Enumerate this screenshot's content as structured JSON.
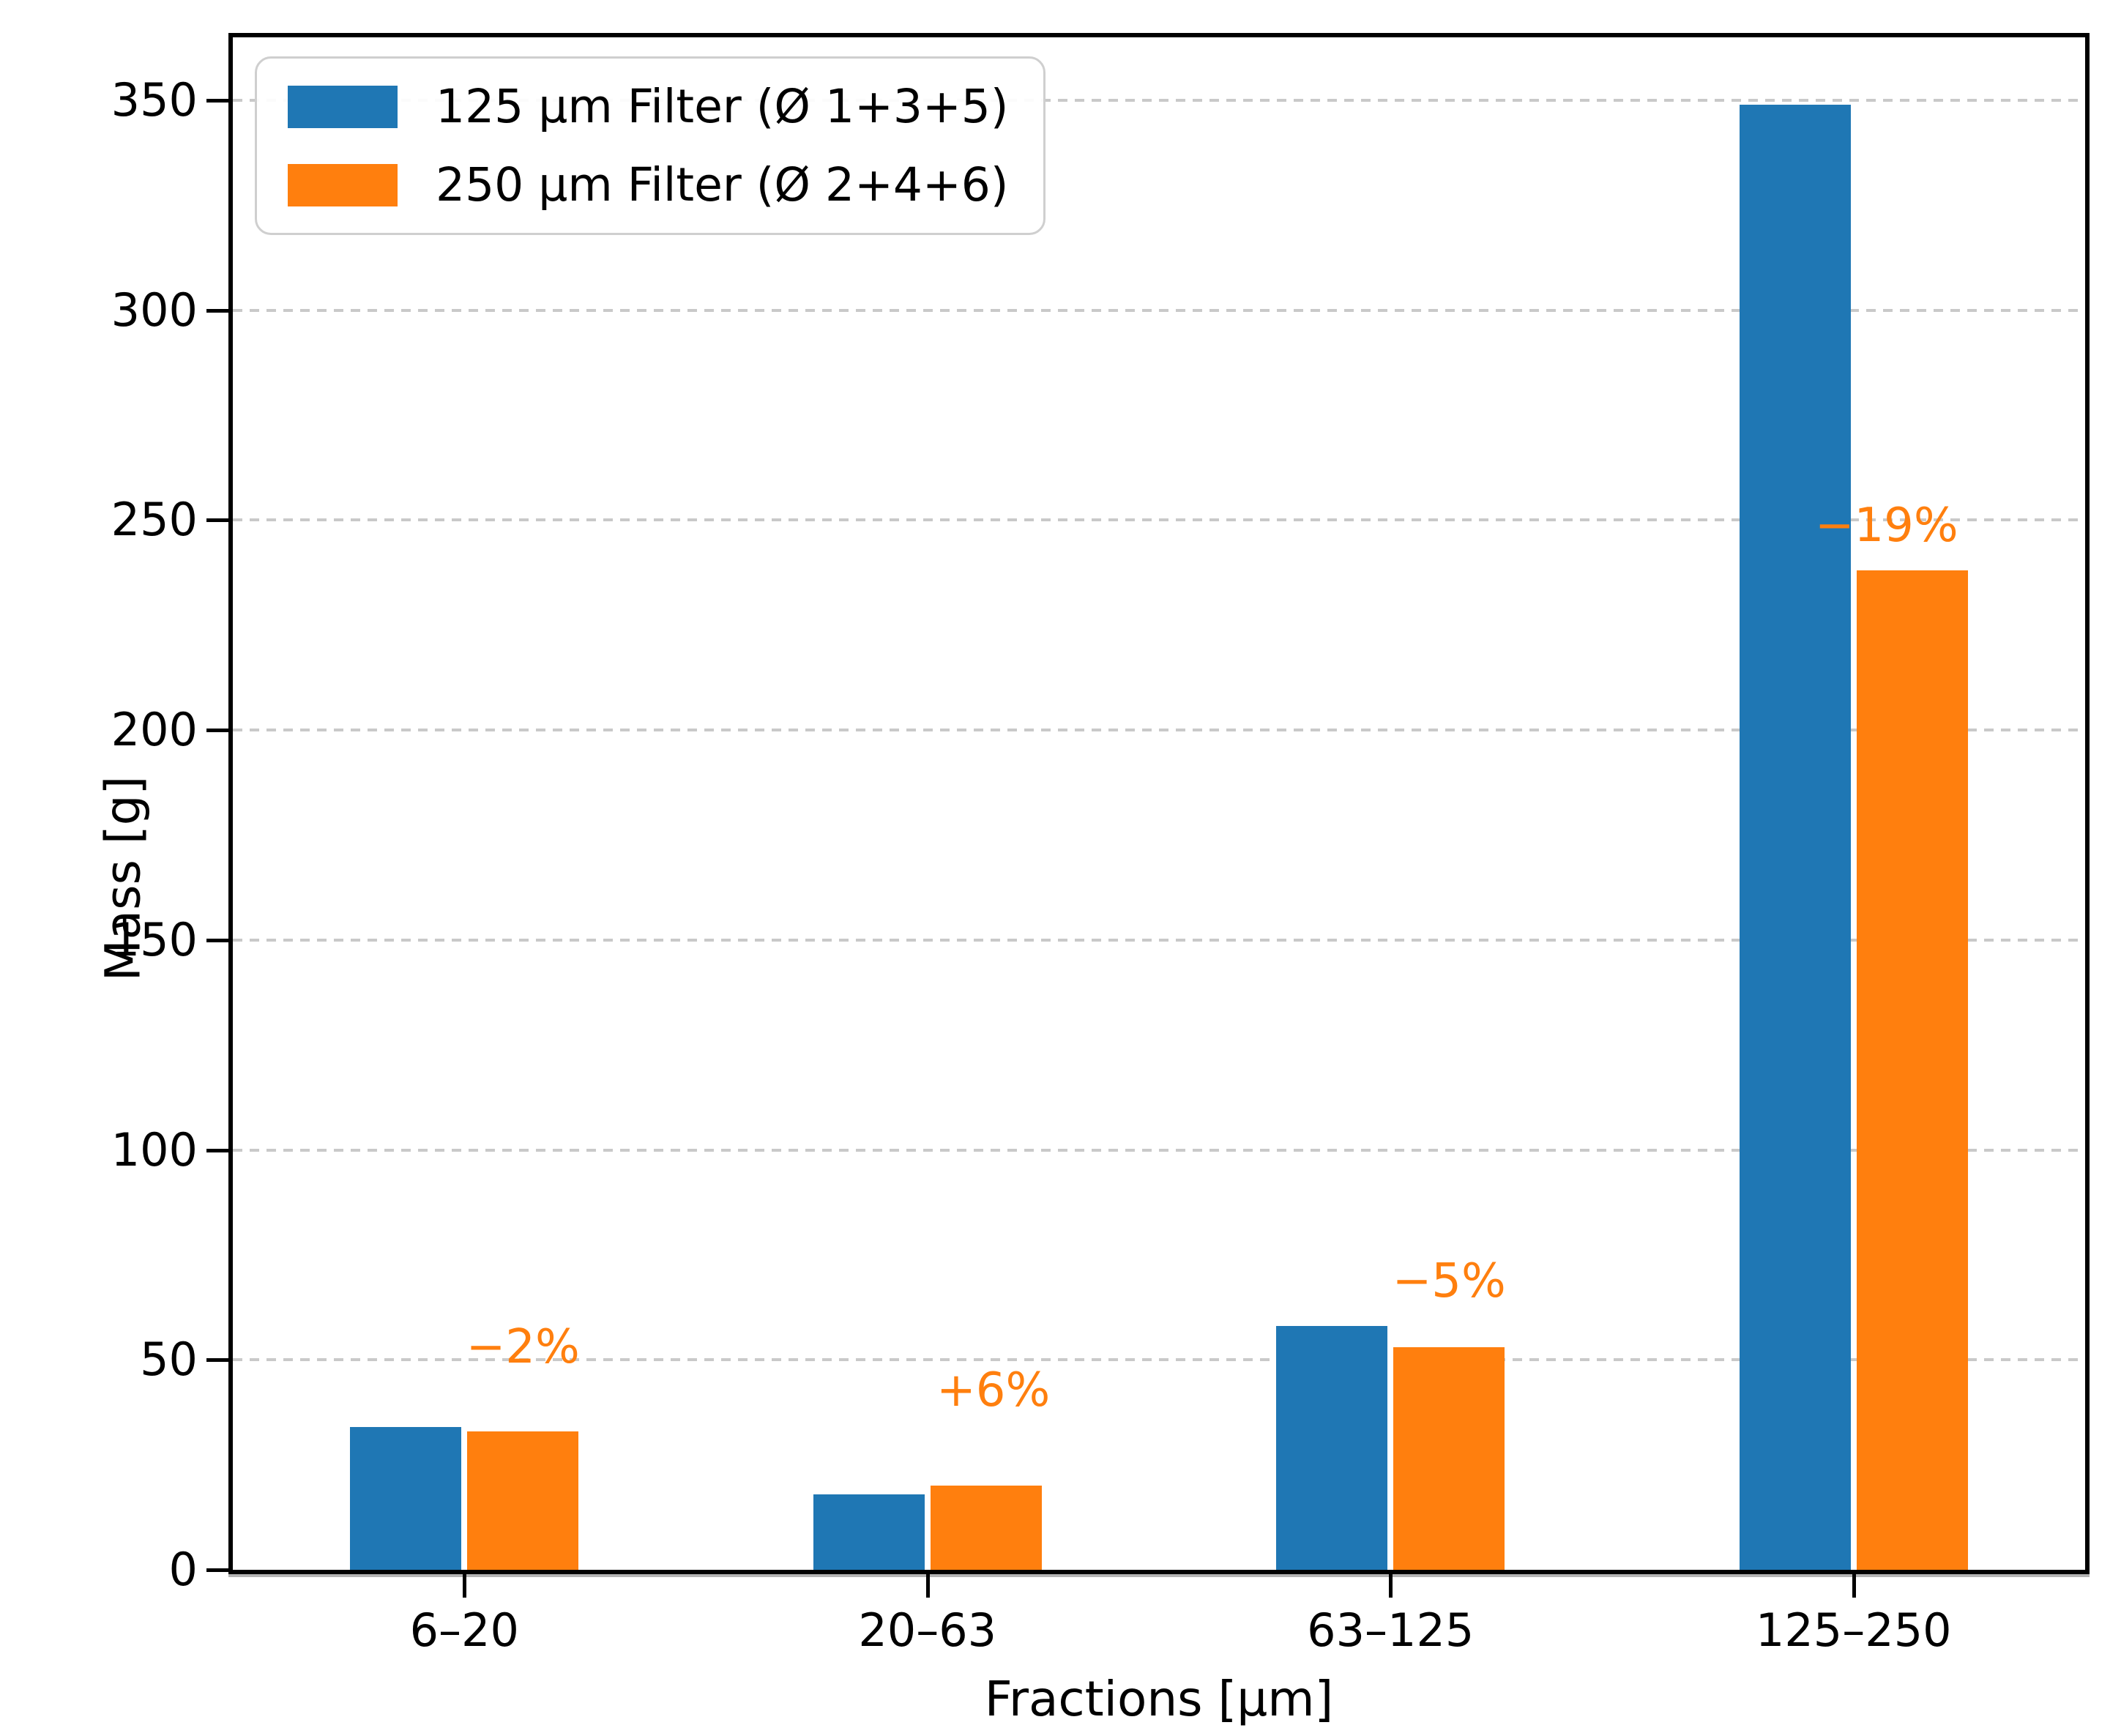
{
  "chart_data": {
    "type": "bar",
    "categories": [
      "6–20",
      "20–63",
      "63–125",
      "125–250"
    ],
    "series": [
      {
        "name": "125 μm Filter (Ø 1+3+5)",
        "color": "#1f77b4",
        "values": [
          34,
          18,
          58,
          349
        ]
      },
      {
        "name": "250 μm Filter (Ø 2+4+6)",
        "color": "#ff7f0e",
        "values": [
          33,
          20,
          53,
          238
        ]
      }
    ],
    "annotations": [
      {
        "text": "−2%",
        "category_index": 0
      },
      {
        "text": "+6%",
        "category_index": 1
      },
      {
        "text": "−5%",
        "category_index": 2
      },
      {
        "text": "−19%",
        "category_index": 3
      }
    ],
    "annotation_color": "#ff7f0e",
    "xlabel": "Fractions [μm]",
    "ylabel": "Mass [g]",
    "ylim": [
      0,
      365
    ],
    "yticks": [
      0,
      50,
      100,
      150,
      200,
      250,
      300,
      350
    ],
    "grid": "horizontal-dashed",
    "gridline_color": "#c9c9c9",
    "legend_position": "upper-left",
    "axis_color": "#000000",
    "background_color": "#ffffff"
  }
}
